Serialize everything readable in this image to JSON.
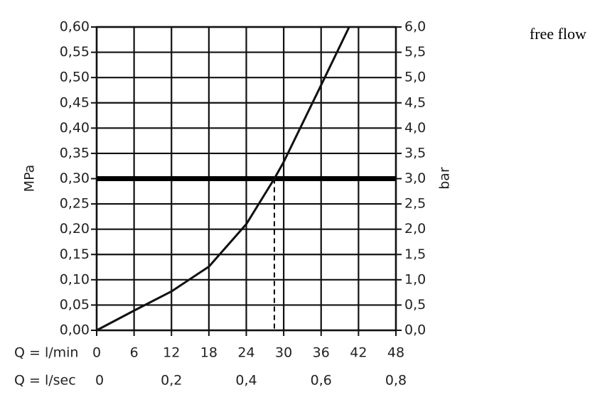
{
  "chart_data": {
    "type": "line",
    "annotation": "free flow",
    "x_label": "Q = l/min",
    "x2_label": "Q = l/sec",
    "y_label": "MPa",
    "y2_label": "bar",
    "x": [
      0,
      6,
      12,
      18,
      24,
      28.5,
      30,
      36,
      40.5
    ],
    "series": [
      {
        "color": "#111111",
        "values": [
          0,
          0.039,
          0.077,
          0.126,
          0.21,
          0.3,
          0.333,
          0.485,
          0.6
        ]
      }
    ],
    "reference_y": 0.3,
    "reference_x": 28.5,
    "xlim": [
      0,
      48
    ],
    "xticks": [
      0,
      6,
      12,
      18,
      24,
      30,
      36,
      42,
      48
    ],
    "x2lim": [
      0,
      0.8
    ],
    "x2ticks": [
      0,
      {
        "value": 0.2,
        "label": "0,2"
      },
      {
        "value": 0.4,
        "label": "0,4"
      },
      {
        "value": 0.6,
        "label": "0,6"
      },
      {
        "value": 0.8,
        "label": "0,8"
      }
    ],
    "ylim": [
      0,
      0.6
    ],
    "yticks": [
      {
        "value": 0,
        "label": "0,00"
      },
      {
        "value": 0.05,
        "label": "0,05"
      },
      {
        "value": 0.1,
        "label": "0,10"
      },
      {
        "value": 0.15,
        "label": "0,15"
      },
      {
        "value": 0.2,
        "label": "0,20"
      },
      {
        "value": 0.25,
        "label": "0,25"
      },
      {
        "value": 0.3,
        "label": "0,30"
      },
      {
        "value": 0.35,
        "label": "0,35"
      },
      {
        "value": 0.4,
        "label": "0,40"
      },
      {
        "value": 0.45,
        "label": "0,45"
      },
      {
        "value": 0.5,
        "label": "0,50"
      },
      {
        "value": 0.55,
        "label": "0,55"
      },
      {
        "value": 0.6,
        "label": "0,60"
      }
    ],
    "y2lim": [
      0,
      6
    ],
    "y2ticks": [
      {
        "value": 0,
        "label": "0,0"
      },
      {
        "value": 0.5,
        "label": "0,5"
      },
      {
        "value": 1,
        "label": "1,0"
      },
      {
        "value": 1.5,
        "label": "1,5"
      },
      {
        "value": 2,
        "label": "2,0"
      },
      {
        "value": 2.5,
        "label": "2,5"
      },
      {
        "value": 3,
        "label": "3,0"
      },
      {
        "value": 3.5,
        "label": "3,5"
      },
      {
        "value": 4,
        "label": "4,0"
      },
      {
        "value": 4.5,
        "label": "4,5"
      },
      {
        "value": 5,
        "label": "5,0"
      },
      {
        "value": 5.5,
        "label": "5,5"
      },
      {
        "value": 6,
        "label": "6,0"
      }
    ],
    "grid": true
  }
}
